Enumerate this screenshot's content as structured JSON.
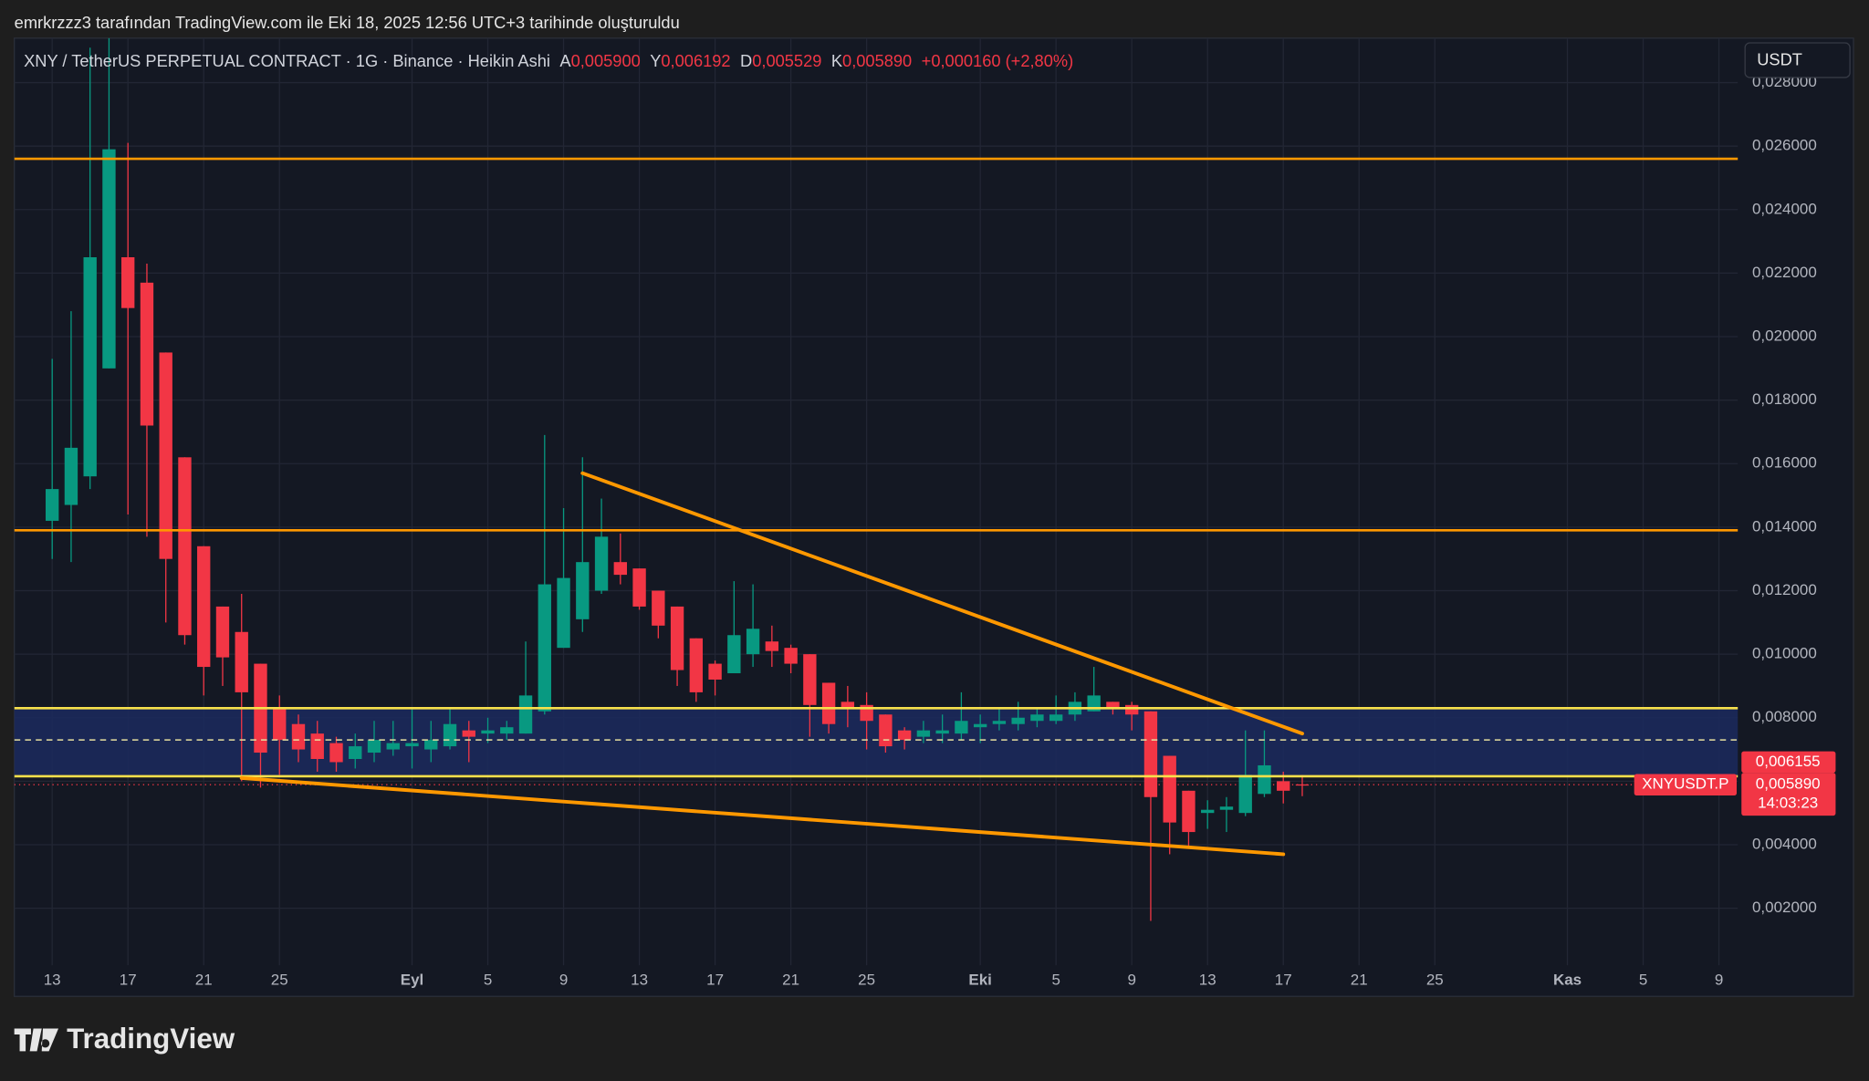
{
  "header": {
    "credit": "emrkrzzz3 tarafından TradingView.com ile Eki 18, 2025 12:56 UTC+3 tarihinde oluşturuldu"
  },
  "toolbar": {
    "currency": "USDT"
  },
  "footer": {
    "brand": "TradingView"
  },
  "chart_data": {
    "type": "candlestick",
    "title": "XNY / TetherUS PERPETUAL CONTRACT · 1G · Binance · Heikin Ashi",
    "legend": {
      "items": [
        {
          "key": "A",
          "value": "0,005900"
        },
        {
          "key": "Y",
          "value": "0,006192"
        },
        {
          "key": "D",
          "value": "0,005529"
        },
        {
          "key": "K",
          "value": "0,005890"
        }
      ],
      "change": "+0,000160 (+2,80%)"
    },
    "x": [
      "2025-08-13",
      "2025-08-14",
      "2025-08-15",
      "2025-08-16",
      "2025-08-17",
      "2025-08-18",
      "2025-08-19",
      "2025-08-20",
      "2025-08-21",
      "2025-08-22",
      "2025-08-23",
      "2025-08-24",
      "2025-08-25",
      "2025-08-26",
      "2025-08-27",
      "2025-08-28",
      "2025-08-29",
      "2025-08-30",
      "2025-08-31",
      "2025-09-01",
      "2025-09-02",
      "2025-09-03",
      "2025-09-04",
      "2025-09-05",
      "2025-09-06",
      "2025-09-07",
      "2025-09-08",
      "2025-09-09",
      "2025-09-10",
      "2025-09-11",
      "2025-09-12",
      "2025-09-13",
      "2025-09-14",
      "2025-09-15",
      "2025-09-16",
      "2025-09-17",
      "2025-09-18",
      "2025-09-19",
      "2025-09-20",
      "2025-09-21",
      "2025-09-22",
      "2025-09-23",
      "2025-09-24",
      "2025-09-25",
      "2025-09-26",
      "2025-09-27",
      "2025-09-28",
      "2025-09-29",
      "2025-09-30",
      "2025-10-01",
      "2025-10-02",
      "2025-10-03",
      "2025-10-04",
      "2025-10-05",
      "2025-10-06",
      "2025-10-07",
      "2025-10-08",
      "2025-10-09",
      "2025-10-10",
      "2025-10-11",
      "2025-10-12",
      "2025-10-13",
      "2025-10-14",
      "2025-10-15",
      "2025-10-16",
      "2025-10-17",
      "2025-10-18"
    ],
    "open": [
      0.0142,
      0.0147,
      0.0156,
      0.019,
      0.0225,
      0.0217,
      0.0195,
      0.0162,
      0.0134,
      0.0115,
      0.0107,
      0.0097,
      0.0083,
      0.0078,
      0.0075,
      0.0072,
      0.0067,
      0.0069,
      0.007,
      0.0071,
      0.007,
      0.0071,
      0.0076,
      0.0075,
      0.0075,
      0.0075,
      0.0082,
      0.0102,
      0.0111,
      0.012,
      0.0129,
      0.0127,
      0.012,
      0.0115,
      0.0105,
      0.0097,
      0.0094,
      0.01,
      0.0104,
      0.0102,
      0.01,
      0.0091,
      0.0085,
      0.0084,
      0.0081,
      0.0076,
      0.0074,
      0.0075,
      0.0075,
      0.0077,
      0.0078,
      0.0078,
      0.0079,
      0.0079,
      0.0081,
      0.0082,
      0.0085,
      0.0084,
      0.0082,
      0.0068,
      0.0057,
      0.005,
      0.0051,
      0.005,
      0.0056,
      0.006,
      0.0059
    ],
    "high": [
      0.0193,
      0.0208,
      0.0291,
      0.0294,
      0.0261,
      0.0223,
      0.0195,
      0.0162,
      0.0134,
      0.0115,
      0.0119,
      0.0097,
      0.0087,
      0.0081,
      0.0079,
      0.0074,
      0.0075,
      0.0079,
      0.0079,
      0.0083,
      0.0079,
      0.0083,
      0.0079,
      0.008,
      0.0079,
      0.0104,
      0.0169,
      0.0146,
      0.0162,
      0.0149,
      0.0138,
      0.0127,
      0.012,
      0.0115,
      0.0105,
      0.0098,
      0.0123,
      0.0122,
      0.0109,
      0.0103,
      0.01,
      0.0091,
      0.009,
      0.0088,
      0.0081,
      0.0077,
      0.0079,
      0.0081,
      0.0088,
      0.0081,
      0.0083,
      0.0085,
      0.0083,
      0.0087,
      0.0088,
      0.0096,
      0.0085,
      0.0085,
      0.0082,
      0.0068,
      0.0057,
      0.0054,
      0.0055,
      0.0076,
      0.0076,
      0.0063,
      0.006192
    ],
    "low": [
      0.013,
      0.0129,
      0.0152,
      0.019,
      0.0144,
      0.0137,
      0.011,
      0.0103,
      0.0087,
      0.009,
      0.006,
      0.0058,
      0.0062,
      0.0066,
      0.0063,
      0.0063,
      0.0064,
      0.0066,
      0.0068,
      0.0064,
      0.0066,
      0.007,
      0.0066,
      0.0072,
      0.0073,
      0.0075,
      0.0081,
      0.0102,
      0.0107,
      0.0119,
      0.0122,
      0.0114,
      0.0105,
      0.009,
      0.0085,
      0.0087,
      0.0094,
      0.0096,
      0.0096,
      0.0094,
      0.0074,
      0.0075,
      0.0077,
      0.007,
      0.0069,
      0.007,
      0.0072,
      0.0072,
      0.0073,
      0.0072,
      0.0076,
      0.0076,
      0.0077,
      0.0078,
      0.0079,
      0.0082,
      0.0081,
      0.0076,
      0.0016,
      0.0037,
      0.0039,
      0.0045,
      0.0044,
      0.0049,
      0.0055,
      0.0053,
      0.005529
    ],
    "close": [
      0.0152,
      0.0165,
      0.0225,
      0.0259,
      0.0209,
      0.0172,
      0.013,
      0.0106,
      0.0096,
      0.0099,
      0.0088,
      0.0069,
      0.0073,
      0.007,
      0.0067,
      0.0066,
      0.0071,
      0.0073,
      0.0072,
      0.0072,
      0.0073,
      0.0078,
      0.0074,
      0.0076,
      0.0077,
      0.0087,
      0.0122,
      0.0124,
      0.0129,
      0.0137,
      0.0125,
      0.0115,
      0.0109,
      0.0095,
      0.0088,
      0.0092,
      0.0106,
      0.0108,
      0.0101,
      0.0097,
      0.0084,
      0.0078,
      0.0083,
      0.0079,
      0.0071,
      0.0073,
      0.0076,
      0.0076,
      0.0079,
      0.0078,
      0.0079,
      0.008,
      0.0081,
      0.0081,
      0.0085,
      0.0087,
      0.0083,
      0.0081,
      0.0055,
      0.0047,
      0.0044,
      0.0051,
      0.0052,
      0.0062,
      0.0065,
      0.0057,
      0.00589
    ],
    "up_color": "#089981",
    "down_color": "#f23645",
    "xlim": [
      "2025-08-11",
      "2025-11-10"
    ],
    "xticks": [
      {
        "value": "2025-08-13",
        "label": "13"
      },
      {
        "value": "2025-08-17",
        "label": "17"
      },
      {
        "value": "2025-08-21",
        "label": "21"
      },
      {
        "value": "2025-08-25",
        "label": "25"
      },
      {
        "value": "2025-09-01",
        "label": "Eyl"
      },
      {
        "value": "2025-09-05",
        "label": "5"
      },
      {
        "value": "2025-09-09",
        "label": "9"
      },
      {
        "value": "2025-09-13",
        "label": "13"
      },
      {
        "value": "2025-09-17",
        "label": "17"
      },
      {
        "value": "2025-09-21",
        "label": "21"
      },
      {
        "value": "2025-09-25",
        "label": "25"
      },
      {
        "value": "2025-10-01",
        "label": "Eki"
      },
      {
        "value": "2025-10-05",
        "label": "5"
      },
      {
        "value": "2025-10-09",
        "label": "9"
      },
      {
        "value": "2025-10-13",
        "label": "13"
      },
      {
        "value": "2025-10-17",
        "label": "17"
      },
      {
        "value": "2025-10-21",
        "label": "21"
      },
      {
        "value": "2025-10-25",
        "label": "25"
      },
      {
        "value": "2025-11-01",
        "label": "Kas"
      },
      {
        "value": "2025-11-05",
        "label": "5"
      },
      {
        "value": "2025-11-09",
        "label": "9"
      }
    ],
    "ylim": [
      0.0002,
      0.0294
    ],
    "yticks": [
      {
        "value": 0.002,
        "label": "0,002000"
      },
      {
        "value": 0.004,
        "label": "0,004000"
      },
      {
        "value": 0.006,
        "label": "0,006000"
      },
      {
        "value": 0.008,
        "label": "0,008000"
      },
      {
        "value": 0.01,
        "label": "0,010000"
      },
      {
        "value": 0.012,
        "label": "0,012000"
      },
      {
        "value": 0.014,
        "label": "0,014000"
      },
      {
        "value": 0.016,
        "label": "0,016000"
      },
      {
        "value": 0.018,
        "label": "0,018000"
      },
      {
        "value": 0.02,
        "label": "0,020000"
      },
      {
        "value": 0.022,
        "label": "0,022000"
      },
      {
        "value": 0.024,
        "label": "0,024000"
      },
      {
        "value": 0.026,
        "label": "0,026000"
      },
      {
        "value": 0.028,
        "label": "0,028000"
      }
    ],
    "grid": true,
    "zone": {
      "ylim": [
        0.006155,
        0.0083
      ],
      "color": "#1b2a5e"
    },
    "hlines": [
      {
        "value": 0.0256,
        "color": "#ff9800"
      },
      {
        "value": 0.0139,
        "color": "#ff9800"
      },
      {
        "value": 0.0083,
        "color": "#f7e04b"
      },
      {
        "value": 0.006155,
        "label": "0,006155",
        "color": "#f7e04b"
      },
      {
        "value": 0.0073,
        "color": "#e8e0a0",
        "dashed": true
      }
    ],
    "trendlines": [
      {
        "x": [
          "2025-09-10",
          "2025-10-18"
        ],
        "y": [
          0.0157,
          0.0075
        ],
        "color": "#ff9800"
      },
      {
        "x": [
          "2025-08-23",
          "2025-10-17"
        ],
        "y": [
          0.0061,
          0.0037
        ],
        "color": "#ff9800"
      }
    ],
    "symbol_label": "XNYUSDT.P",
    "last_price_label": "0,005890",
    "countdown": "14:03:23"
  }
}
